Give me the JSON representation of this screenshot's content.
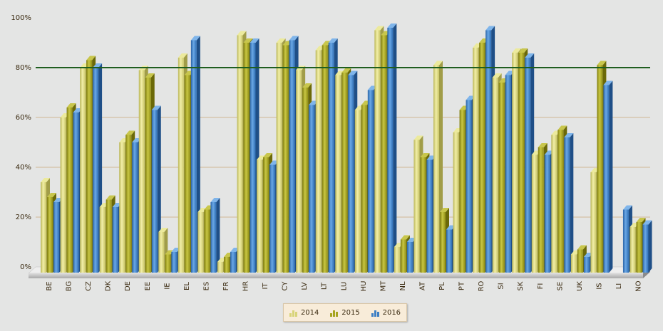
{
  "chart_data": {
    "type": "bar",
    "title": "",
    "xlabel": "",
    "ylabel": "",
    "ylim": [
      0,
      100
    ],
    "yticks": [
      "0%",
      "20%",
      "40%",
      "60%",
      "80%",
      "100%"
    ],
    "reference_line": {
      "value": 80,
      "color": "#1f5e1f"
    },
    "categories": [
      "BE",
      "BG",
      "CZ",
      "DK",
      "DE",
      "EE",
      "IE",
      "EL",
      "ES",
      "FR",
      "HR",
      "IT",
      "CY",
      "LV",
      "LT",
      "LU",
      "HU",
      "MT",
      "NL",
      "AT",
      "PL",
      "PT",
      "RO",
      "SI",
      "SK",
      "FI",
      "SE",
      "UK",
      "IS",
      "LI",
      "NO"
    ],
    "series": [
      {
        "name": "2014",
        "color": "#d8d47a",
        "values": [
          34,
          60,
          80,
          24,
          50,
          79,
          14,
          84,
          22,
          2,
          93,
          43,
          90,
          79,
          87,
          77,
          63,
          95,
          8,
          51,
          81,
          54,
          88,
          76,
          86,
          45,
          53,
          5,
          38,
          null,
          16
        ]
      },
      {
        "name": "2015",
        "color": "#a6a41e",
        "values": [
          28,
          64,
          83,
          27,
          53,
          76,
          5,
          77,
          23,
          4,
          90,
          44,
          89,
          72,
          89,
          78,
          65,
          93,
          11,
          44,
          22,
          63,
          90,
          74,
          86,
          48,
          55,
          7,
          81,
          null,
          18
        ]
      },
      {
        "name": "2016",
        "color": "#3d7fc4",
        "values": [
          26,
          62,
          80,
          24,
          50,
          63,
          6,
          91,
          26,
          6,
          90,
          41,
          91,
          65,
          90,
          77,
          71,
          96,
          10,
          43,
          15,
          67,
          95,
          77,
          84,
          45,
          52,
          4,
          73,
          23,
          17
        ]
      }
    ],
    "grid": true,
    "legend_position": "bottom-center"
  }
}
